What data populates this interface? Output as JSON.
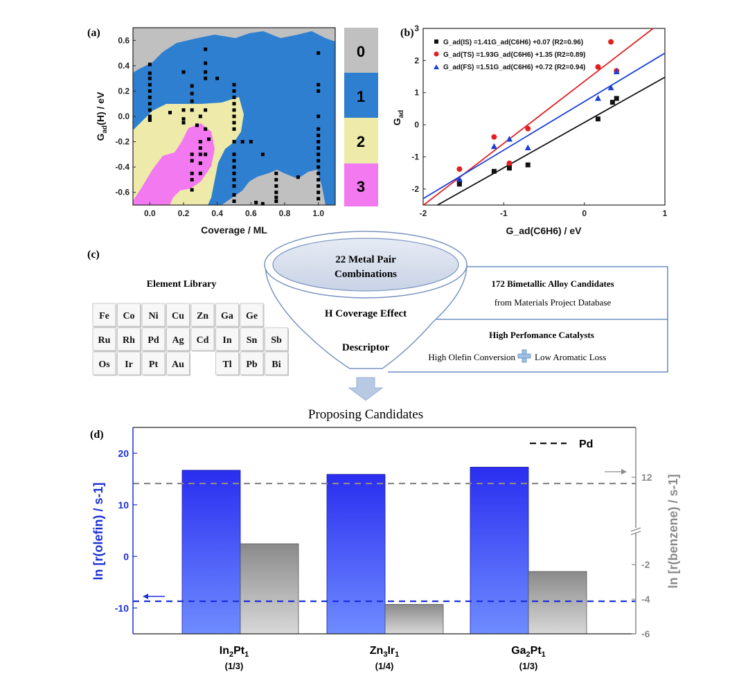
{
  "colors": {
    "gray": "#c0c0c0",
    "blue": "#2f7fd0",
    "yellow": "#eeeaaa",
    "pink": "#f279ef",
    "red_fit": "#e02020",
    "blue_fit": "#1a3fd6",
    "bar_blue": "#2a2ef0",
    "bar_gray": "#8a8a8a"
  },
  "panel_a": {
    "label": "(a)",
    "xlabel": "Coverage / ML",
    "ylabel_main": "G",
    "ylabel_sub": "ad",
    "ylabel_tail": "(H) / eV",
    "colorbar": [
      "0",
      "1",
      "2",
      "3"
    ]
  },
  "panel_b": {
    "label": "(b)",
    "ylabel_main": "G",
    "ylabel_sub": "ad",
    "xlabel": "G_ad(C6H6) / eV",
    "legend": [
      "G_ad(IS) =1.41G_ad(C6H6) +0.07 (R2=0.96)",
      "G_ad(TS) =1.93G_ad(C6H6) +1.35 (R2=0.89)",
      "G_ad(FS) =1.51G_ad(C6H6) +0.72 (R2=0.94)"
    ]
  },
  "panel_c": {
    "label": "(c)",
    "library_title": "Element  Library",
    "elements_row1": [
      "Fe",
      "Co",
      "Ni",
      "Cu",
      "Zn",
      "Ga",
      "Ge"
    ],
    "elements_row2": [
      "Ru",
      "Rh",
      "Pd",
      "Ag",
      "Cd",
      "In",
      "Sn",
      "Sb"
    ],
    "elements_row3": [
      "Os",
      "Ir",
      "Pt",
      "Au",
      "Tl",
      "Pb",
      "Bi"
    ],
    "funnel_top_line1": "22 Metal Pair",
    "funnel_top_line2": "Combinations",
    "funnel_mid": "H  Coverage Effect",
    "funnel_low": "Descriptor",
    "box1_title": "172 Bimetallic Alloy Candidates",
    "box1_sub": "from Materials Project Database",
    "box2_title": "High Perfomance Catalysts",
    "box2_left": "High Olefin Conversion",
    "box2_right": "Low Aromatic Loss",
    "bottom": "Proposing Candidates"
  },
  "panel_d": {
    "label": "(d)",
    "ylabel_left": "ln [r(olefin) / s-1]",
    "ylabel_right": "ln [r(benzene) / s-1]",
    "legend": "Pd",
    "candidates": [
      {
        "name": "In2Pt1",
        "coverage": "(1/3)"
      },
      {
        "name": "Zn3Ir1",
        "coverage": "(1/4)"
      },
      {
        "name": "Ga2Pt1",
        "coverage": "(1/3)"
      }
    ]
  },
  "chart_data": [
    {
      "type": "scatter",
      "title": "(a)",
      "xlabel": "Coverage / ML",
      "ylabel": "Gad(H) / eV",
      "xlim": [
        -0.1,
        1.1
      ],
      "ylim": [
        -0.7,
        0.7
      ],
      "xticks": [
        0.0,
        0.2,
        0.4,
        0.6,
        0.8,
        1.0
      ],
      "yticks": [
        -0.6,
        -0.4,
        -0.2,
        0.0,
        0.2,
        0.4,
        0.6
      ],
      "colorbar_levels": [
        "0",
        "1",
        "2",
        "3"
      ],
      "x": [
        0,
        0,
        0,
        0,
        0,
        0,
        0,
        0,
        0,
        0,
        0,
        0.12,
        0.2,
        0.2,
        0.2,
        0.2,
        0.25,
        0.25,
        0.25,
        0.25,
        0.25,
        0.25,
        0.25,
        0.25,
        0.25,
        0.28,
        0.3,
        0.3,
        0.3,
        0.3,
        0.3,
        0.3,
        0.33,
        0.33,
        0.33,
        0.33,
        0.33,
        0.33,
        0.33,
        0.35,
        0.4,
        0.5,
        0.5,
        0.5,
        0.5,
        0.5,
        0.5,
        0.5,
        0.5,
        0.5,
        0.5,
        0.5,
        0.5,
        0.5,
        0.5,
        0.5,
        0.5,
        0.5,
        0.5,
        0.55,
        0.6,
        0.63,
        0.67,
        0.67,
        0.75,
        0.75,
        0.75,
        0.75,
        0.75,
        0.75,
        0.88,
        1,
        1,
        1,
        1,
        1,
        1,
        1,
        1,
        1,
        1,
        1,
        1,
        1,
        1,
        1,
        1
      ],
      "y": [
        0.41,
        0.34,
        0.3,
        0.25,
        0.2,
        0.15,
        0.1,
        0.05,
        0.0,
        -0.03,
        -0.02,
        0.03,
        0.35,
        0.05,
        -0.02,
        -0.05,
        0.24,
        0.18,
        0.12,
        0.05,
        -0.3,
        -0.35,
        -0.45,
        -0.5,
        -0.58,
        -0.07,
        0.0,
        -0.2,
        -0.25,
        -0.3,
        -0.37,
        -0.45,
        0.53,
        0.42,
        0.35,
        0.3,
        0.05,
        -0.1,
        -0.3,
        -0.18,
        0.3,
        0.25,
        0.2,
        0.15,
        0.1,
        0.05,
        0.0,
        -0.05,
        -0.1,
        -0.2,
        -0.3,
        -0.35,
        -0.45,
        -0.5,
        -0.55,
        -0.62,
        -0.67,
        -0.4,
        -0.45,
        -0.2,
        -0.2,
        -0.68,
        -0.3,
        -0.69,
        -0.45,
        -0.5,
        -0.55,
        -0.6,
        -0.64,
        -0.67,
        -0.48,
        0.5,
        0.25,
        0.2,
        0.0,
        -0.1,
        -0.15,
        -0.2,
        -0.25,
        -0.3,
        -0.35,
        -0.4,
        -0.45,
        -0.5,
        -0.55,
        -0.6,
        -0.65
      ]
    },
    {
      "type": "scatter",
      "title": "(b)",
      "xlabel": "Gad(C6H6) / eV",
      "ylabel": "Gad / eV",
      "xlim": [
        -2,
        1
      ],
      "ylim": [
        -2.5,
        3
      ],
      "xticks": [
        -2,
        -1,
        0,
        1
      ],
      "yticks": [
        -2,
        -1,
        0,
        1,
        2,
        3
      ],
      "series": [
        {
          "name": "Gad(IS)",
          "x": [
            -1.55,
            -1.55,
            -1.12,
            -0.93,
            -0.93,
            -0.7,
            0.17,
            0.35,
            0.4
          ],
          "y": [
            -1.78,
            -1.85,
            -1.45,
            -1.3,
            -1.35,
            -1.25,
            0.18,
            0.7,
            0.82
          ],
          "fit": {
            "slope": 1.41,
            "intercept": 0.07,
            "r2": 0.96
          }
        },
        {
          "name": "Gad(TS)",
          "x": [
            -1.55,
            -1.12,
            -0.93,
            -0.7,
            0.17,
            0.33,
            0.4
          ],
          "y": [
            -1.38,
            -0.38,
            -1.2,
            -0.12,
            1.8,
            2.58,
            1.68
          ],
          "fit": {
            "slope": 1.93,
            "intercept": 1.35,
            "r2": 0.89
          }
        },
        {
          "name": "Gad(FS)",
          "x": [
            -1.55,
            -1.12,
            -0.93,
            -0.7,
            0.17,
            0.33,
            0.4
          ],
          "y": [
            -1.7,
            -0.68,
            -0.45,
            -0.72,
            0.82,
            1.15,
            1.65
          ],
          "fit": {
            "slope": 1.51,
            "intercept": 0.72,
            "r2": 0.94
          }
        }
      ]
    },
    {
      "type": "bar",
      "title": "(d)",
      "categories": [
        "In2Pt1",
        "Zn3Ir1",
        "Ga2Pt1"
      ],
      "ylabel_left": "ln [r(olefin) / s-1]",
      "ylabel_right": "ln [r(benzene) / s-1]",
      "ylim_left": [
        -15,
        25
      ],
      "yticks_left": [
        -10,
        0,
        10,
        20
      ],
      "yticks_right": [
        -6,
        -4,
        -2,
        12
      ],
      "axis_break_right": true,
      "series": [
        {
          "name": "r(olefin)",
          "axis": "left",
          "values": [
            16.7,
            15.9,
            17.3
          ]
        },
        {
          "name": "r(benzene)",
          "axis": "right",
          "values": [
            -0.8,
            -4.3,
            -2.4
          ]
        }
      ],
      "reference": {
        "name": "Pd",
        "left_value": -8.8,
        "right_value": 11.7
      }
    }
  ]
}
